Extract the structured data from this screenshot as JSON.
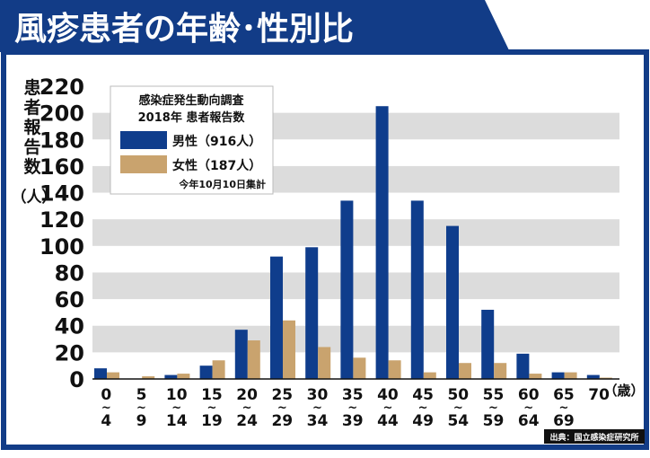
{
  "header": {
    "title": "風疹患者の年齢･性別比"
  },
  "legend_box": {
    "heading_line1": "感染症発生動向調査",
    "heading_line2": "2018年 患者報告数",
    "series_labels": [
      "男性（916人）",
      "女性（187人）"
    ],
    "footnote": "今年10月10日集計"
  },
  "y_axis_label_chars": [
    "患",
    "者",
    "報",
    "告",
    "数"
  ],
  "y_axis_unit": "（人）",
  "x_axis_unit": "（歳）",
  "source": "出典：国立感染症研究所",
  "colors": {
    "male": "#0f3d8c",
    "female": "#c9a36e",
    "header_bg": "#123c87",
    "frame": "#123c87",
    "band": "#dcdcdc"
  },
  "chart_data": {
    "type": "bar",
    "categories": [
      [
        "0",
        "4"
      ],
      [
        "5",
        "9"
      ],
      [
        "10",
        "14"
      ],
      [
        "15",
        "19"
      ],
      [
        "20",
        "24"
      ],
      [
        "25",
        "29"
      ],
      [
        "30",
        "34"
      ],
      [
        "35",
        "39"
      ],
      [
        "40",
        "44"
      ],
      [
        "45",
        "49"
      ],
      [
        "50",
        "54"
      ],
      [
        "55",
        "59"
      ],
      [
        "60",
        "64"
      ],
      [
        "65",
        "69"
      ],
      [
        "70"
      ]
    ],
    "series": [
      {
        "name": "男性（916人）",
        "color": "#0f3d8c",
        "values": [
          8,
          0,
          3,
          10,
          37,
          92,
          99,
          134,
          205,
          134,
          115,
          52,
          19,
          5,
          3
        ]
      },
      {
        "name": "女性（187人）",
        "color": "#c9a36e",
        "values": [
          5,
          2,
          4,
          14,
          29,
          44,
          24,
          16,
          14,
          5,
          12,
          12,
          4,
          5,
          1
        ]
      }
    ],
    "ylim": [
      0,
      220
    ],
    "yticks": [
      0,
      20,
      40,
      60,
      80,
      100,
      120,
      140,
      160,
      180,
      200,
      220
    ],
    "grid": "alternating-bands",
    "legend_position": "top-left"
  }
}
